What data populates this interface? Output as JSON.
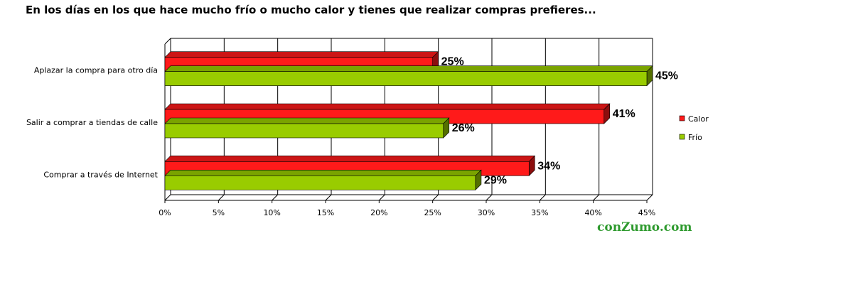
{
  "chart_data": {
    "type": "bar",
    "orientation": "horizontal",
    "title": "En los días en los que hace mucho frío o mucho calor y tienes que realizar compras prefieres...",
    "categories": [
      "Aplazar la compra para otro día",
      "Salir a comprar a tiendas de calle",
      "Comprar a través de Internet"
    ],
    "series": [
      {
        "name": "Calor",
        "values": [
          25,
          41,
          34
        ],
        "labels": [
          "25%",
          "41%",
          "34%"
        ],
        "color": "#ff1a1a"
      },
      {
        "name": "Frío",
        "values": [
          45,
          26,
          29
        ],
        "labels": [
          "45%",
          "26%",
          "29%"
        ],
        "color": "#99cc00"
      }
    ],
    "xlim": [
      0,
      45
    ],
    "xticks": [
      0,
      5,
      10,
      15,
      20,
      25,
      30,
      35,
      40,
      45
    ],
    "xtick_labels": [
      "0%",
      "5%",
      "10%",
      "15%",
      "20%",
      "25%",
      "30%",
      "35%",
      "40%",
      "45%"
    ],
    "grid": true,
    "legend_position": "right",
    "style": "3d"
  },
  "watermark": "conZumo.com"
}
